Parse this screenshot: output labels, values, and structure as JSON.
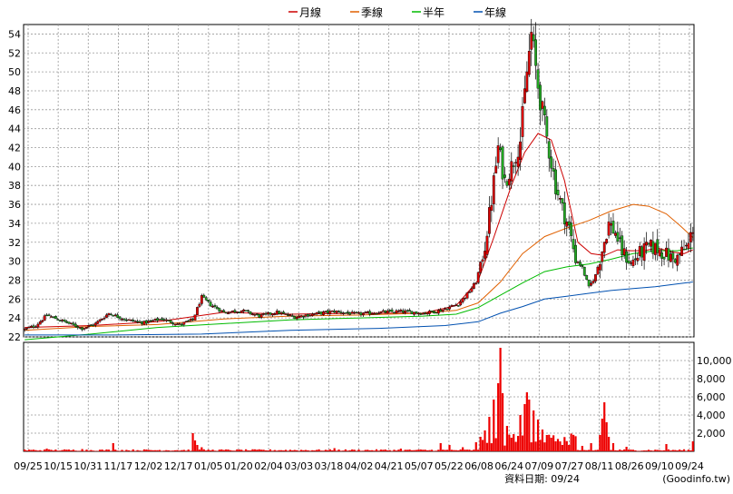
{
  "legend": {
    "items": [
      {
        "label": "月線",
        "color": "#cc0000"
      },
      {
        "label": "季線",
        "color": "#e06000"
      },
      {
        "label": "半年",
        "color": "#00bb00"
      },
      {
        "label": "年線",
        "color": "#0050b0"
      }
    ]
  },
  "footer": {
    "date_label": "資料日期: 09/24",
    "source": "(Goodinfo.tw)"
  },
  "chart_data": [
    {
      "type": "candlestick",
      "title": "",
      "ylim": [
        22,
        55
      ],
      "y_ticks": [
        22,
        24,
        26,
        28,
        30,
        32,
        34,
        36,
        38,
        40,
        42,
        44,
        46,
        48,
        50,
        52,
        54
      ],
      "x_tick_labels": [
        "09/25",
        "10/15",
        "10/31",
        "11/17",
        "12/02",
        "12/17",
        "01/05",
        "01/20",
        "02/04",
        "03/03",
        "03/18",
        "04/02",
        "04/21",
        "05/07",
        "05/22",
        "06/08",
        "06/24",
        "07/09",
        "07/27",
        "08/11",
        "08/26",
        "09/10",
        "09/24"
      ],
      "grid": true,
      "up_color": "#dd0000",
      "down_color": "#22aa22",
      "close_anchors": [
        [
          0,
          22.8
        ],
        [
          5,
          23.2
        ],
        [
          10,
          24.3
        ],
        [
          18,
          23.6
        ],
        [
          26,
          22.9
        ],
        [
          32,
          23.4
        ],
        [
          38,
          24.5
        ],
        [
          46,
          23.8
        ],
        [
          54,
          23.5
        ],
        [
          62,
          23.9
        ],
        [
          70,
          23.3
        ],
        [
          76,
          23.8
        ],
        [
          80,
          26.2
        ],
        [
          84,
          25.4
        ],
        [
          90,
          24.6
        ],
        [
          98,
          24.8
        ],
        [
          106,
          24.2
        ],
        [
          114,
          24.6
        ],
        [
          122,
          24.1
        ],
        [
          130,
          24.4
        ],
        [
          140,
          24.7
        ],
        [
          150,
          24.4
        ],
        [
          160,
          24.6
        ],
        [
          170,
          24.7
        ],
        [
          180,
          24.5
        ],
        [
          188,
          24.8
        ],
        [
          196,
          25.5
        ],
        [
          200,
          26.5
        ],
        [
          204,
          27.8
        ],
        [
          208,
          31.6
        ],
        [
          211,
          36.5
        ],
        [
          214,
          42.0
        ],
        [
          217,
          38.5
        ],
        [
          220,
          40.0
        ],
        [
          224,
          42.8
        ],
        [
          227,
          50.0
        ],
        [
          229,
          54.0
        ],
        [
          232,
          48.5
        ],
        [
          236,
          43.0
        ],
        [
          240,
          38.0
        ],
        [
          243,
          35.5
        ],
        [
          246,
          33.5
        ],
        [
          249,
          30.3
        ],
        [
          252,
          29.3
        ],
        [
          255,
          27.2
        ],
        [
          258,
          28.5
        ],
        [
          261,
          31.2
        ],
        [
          264,
          34.0
        ],
        [
          267,
          33.0
        ],
        [
          270,
          31.0
        ],
        [
          274,
          29.8
        ],
        [
          278,
          30.8
        ],
        [
          282,
          31.5
        ],
        [
          286,
          31.3
        ],
        [
          290,
          30.7
        ],
        [
          294,
          30.0
        ],
        [
          297,
          31.0
        ],
        [
          300,
          31.7
        ],
        [
          302,
          33.6
        ]
      ],
      "moving_averages": [
        {
          "name": "月線",
          "color": "#cc0000",
          "points": [
            [
              0,
              23.0
            ],
            [
              30,
              23.2
            ],
            [
              60,
              23.6
            ],
            [
              90,
              24.6
            ],
            [
              120,
              24.4
            ],
            [
              150,
              24.5
            ],
            [
              180,
              24.5
            ],
            [
              195,
              25.3
            ],
            [
              205,
              28.0
            ],
            [
              212,
              32.5
            ],
            [
              220,
              38.0
            ],
            [
              226,
              41.5
            ],
            [
              232,
              43.5
            ],
            [
              238,
              42.8
            ],
            [
              244,
              38.5
            ],
            [
              250,
              32.0
            ],
            [
              256,
              30.8
            ],
            [
              262,
              30.6
            ],
            [
              268,
              31.2
            ],
            [
              274,
              31.1
            ],
            [
              280,
              31.1
            ],
            [
              286,
              31.4
            ],
            [
              292,
              31.0
            ],
            [
              298,
              30.8
            ],
            [
              302,
              31.2
            ]
          ]
        },
        {
          "name": "季線",
          "color": "#e06000",
          "points": [
            [
              0,
              22.7
            ],
            [
              30,
              23.1
            ],
            [
              60,
              23.3
            ],
            [
              90,
              23.9
            ],
            [
              120,
              24.2
            ],
            [
              150,
              24.3
            ],
            [
              180,
              24.5
            ],
            [
              195,
              24.8
            ],
            [
              205,
              25.6
            ],
            [
              215,
              27.8
            ],
            [
              225,
              30.8
            ],
            [
              235,
              32.6
            ],
            [
              245,
              33.5
            ],
            [
              255,
              34.3
            ],
            [
              265,
              35.3
            ],
            [
              275,
              36.0
            ],
            [
              282,
              35.8
            ],
            [
              290,
              35.0
            ],
            [
              296,
              33.8
            ],
            [
              302,
              32.5
            ]
          ]
        },
        {
          "name": "半年",
          "color": "#00bb00",
          "points": [
            [
              0,
              21.7
            ],
            [
              30,
              22.3
            ],
            [
              60,
              23.0
            ],
            [
              90,
              23.4
            ],
            [
              120,
              23.8
            ],
            [
              150,
              24.0
            ],
            [
              180,
              24.2
            ],
            [
              195,
              24.4
            ],
            [
              205,
              25.1
            ],
            [
              215,
              26.4
            ],
            [
              225,
              27.7
            ],
            [
              235,
              28.9
            ],
            [
              245,
              29.4
            ],
            [
              255,
              29.7
            ],
            [
              265,
              30.2
            ],
            [
              275,
              30.8
            ],
            [
              285,
              31.1
            ],
            [
              295,
              31.1
            ],
            [
              302,
              31.4
            ]
          ]
        },
        {
          "name": "年線",
          "color": "#0050b0",
          "points": [
            [
              0,
              22.2
            ],
            [
              40,
              22.2
            ],
            [
              80,
              22.3
            ],
            [
              120,
              22.7
            ],
            [
              160,
              22.9
            ],
            [
              190,
              23.2
            ],
            [
              205,
              23.6
            ],
            [
              215,
              24.5
            ],
            [
              225,
              25.2
            ],
            [
              235,
              26.0
            ],
            [
              245,
              26.3
            ],
            [
              255,
              26.6
            ],
            [
              265,
              26.9
            ],
            [
              275,
              27.1
            ],
            [
              285,
              27.3
            ],
            [
              295,
              27.6
            ],
            [
              302,
              27.8
            ]
          ]
        }
      ]
    },
    {
      "type": "bar",
      "title": "",
      "ylim": [
        0,
        12000
      ],
      "y_ticks": [
        2000,
        4000,
        6000,
        8000,
        10000
      ],
      "y_tick_labels": [
        "2,000",
        "4,000",
        "6,000",
        "8,000",
        "10,000"
      ],
      "color": "#ee0000",
      "base_level": 150,
      "spikes": [
        [
          0,
          200
        ],
        [
          10,
          300
        ],
        [
          26,
          250
        ],
        [
          40,
          900
        ],
        [
          76,
          2000
        ],
        [
          77,
          1200
        ],
        [
          78,
          700
        ],
        [
          80,
          450
        ],
        [
          140,
          350
        ],
        [
          170,
          300
        ],
        [
          188,
          900
        ],
        [
          192,
          700
        ],
        [
          198,
          450
        ],
        [
          204,
          1000
        ],
        [
          206,
          1600
        ],
        [
          208,
          2300
        ],
        [
          210,
          3800
        ],
        [
          212,
          5700
        ],
        [
          214,
          7500
        ],
        [
          215,
          11400
        ],
        [
          216,
          6400
        ],
        [
          218,
          2800
        ],
        [
          220,
          1500
        ],
        [
          224,
          4000
        ],
        [
          226,
          5200
        ],
        [
          227,
          6500
        ],
        [
          228,
          5700
        ],
        [
          230,
          4500
        ],
        [
          232,
          3500
        ],
        [
          234,
          2400
        ],
        [
          236,
          1800
        ],
        [
          238,
          1500
        ],
        [
          240,
          1100
        ],
        [
          246,
          700
        ],
        [
          252,
          600
        ],
        [
          256,
          900
        ],
        [
          260,
          1800
        ],
        [
          261,
          3600
        ],
        [
          262,
          5400
        ],
        [
          263,
          3200
        ],
        [
          264,
          1600
        ],
        [
          266,
          900
        ],
        [
          272,
          500
        ],
        [
          290,
          800
        ],
        [
          302,
          1100
        ]
      ]
    }
  ]
}
